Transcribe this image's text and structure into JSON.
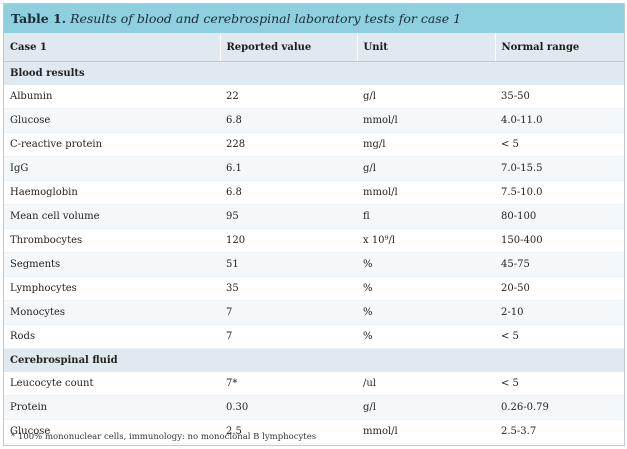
{
  "title": {
    "label": "Table 1.",
    "caption": "Results of blood and cerebrospinal laboratory tests for case 1"
  },
  "columns": [
    "Case 1",
    "Reported value",
    "Unit",
    "Normal range"
  ],
  "sections": [
    {
      "heading": "Blood results",
      "rows": [
        [
          "Albumin",
          "22",
          "g/l",
          "35-50"
        ],
        [
          "Glucose",
          "6.8",
          "mmol/l",
          "4.0-11.0"
        ],
        [
          "C-reactive protein",
          "228",
          "mg/l",
          "< 5"
        ],
        [
          "IgG",
          "6.1",
          "g/l",
          "7.0-15.5"
        ],
        [
          "Haemoglobin",
          "6.8",
          "mmol/l",
          "7.5-10.0"
        ],
        [
          "Mean cell volume",
          "95",
          "fl",
          "80-100"
        ],
        [
          "Thrombocytes",
          "120",
          "x 10⁹/l",
          "150-400"
        ],
        [
          "Segments",
          "51",
          "%",
          "45-75"
        ],
        [
          "Lymphocytes",
          "35",
          "%",
          "20-50"
        ],
        [
          "Monocytes",
          "7",
          "%",
          "2-10"
        ],
        [
          "Rods",
          "7",
          "%",
          "< 5"
        ]
      ]
    },
    {
      "heading": "Cerebrospinal fluid",
      "rows": [
        [
          "Leucocyte count",
          "7*",
          "/ul",
          "< 5"
        ],
        [
          "Protein",
          "0.30",
          "g/l",
          "0.26-0.79"
        ],
        [
          "Glucose",
          "2.5",
          "mmol/l",
          "2.5-3.7"
        ]
      ]
    }
  ],
  "footnote": "* 100% mononuclear cells, immunology: no monoclonal B lymphocytes"
}
